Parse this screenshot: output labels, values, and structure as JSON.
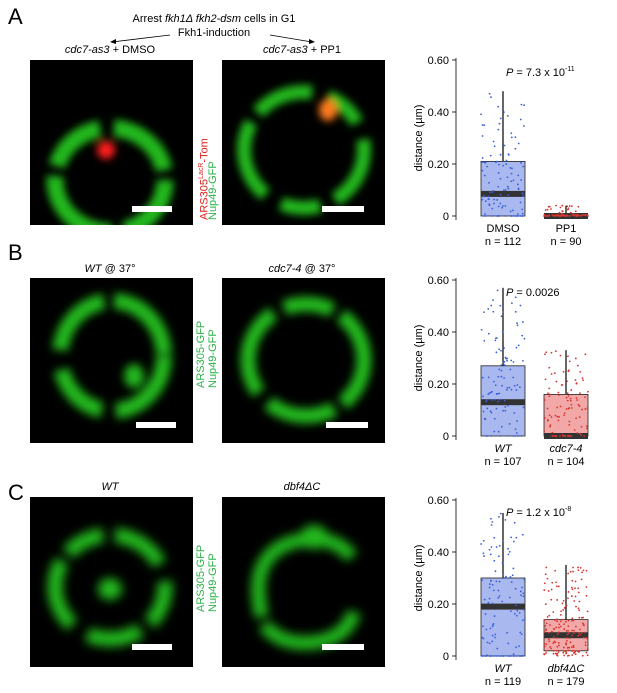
{
  "header": {
    "line1_pre": "Arrest ",
    "line1_genes": "fkh1Δ fkh2-dsm",
    "line1_post": " cells in G1",
    "line2": "Fkh1-induction"
  },
  "panels": [
    {
      "letter": "A",
      "left_cond": {
        "italic": "cdc7-as3",
        "plain": " + DMSO"
      },
      "right_cond": {
        "italic": "cdc7-as3",
        "plain": " + PP1"
      },
      "channel_labels": [
        {
          "text": "ARS305",
          "sup": "LacR",
          "text2": "-Tom",
          "color": "#e0201b"
        },
        {
          "text": "Nup49-GFP",
          "color": "#2bb24a"
        }
      ]
    },
    {
      "letter": "B",
      "left_cond": {
        "italic": "WT",
        "plain": " @ 37°"
      },
      "right_cond": {
        "italic": "cdc7-4",
        "plain": " @ 37°"
      },
      "channel_labels": [
        {
          "text": "ARS305-GFP",
          "color": "#2bb24a"
        },
        {
          "text": "Nup49-GFP",
          "color": "#2bb24a"
        }
      ]
    },
    {
      "letter": "C",
      "left_cond": {
        "italic": "WT",
        "plain": ""
      },
      "right_cond": {
        "italic": "dbf4ΔC",
        "plain": ""
      },
      "channel_labels": [
        {
          "text": "ARS305-GFP",
          "color": "#2bb24a"
        },
        {
          "text": "Nup49-GFP",
          "color": "#2bb24a"
        }
      ]
    }
  ],
  "colors": {
    "blue_box": "#a9b9ef",
    "blue_point": "#3a5fd6",
    "red_box": "#f3a8a8",
    "red_point": "#d8342f",
    "green": "#22c21e",
    "red_spot": "#ff1a1a",
    "orange_spot": "#ff7a1a"
  },
  "chart_data": [
    {
      "type": "box",
      "ylabel": "distance (µm)",
      "ylim": [
        0,
        0.6
      ],
      "yticks": [
        "0",
        "0.20",
        "0.40",
        "0.60"
      ],
      "pvalue": {
        "prefix": "P",
        "text": " = 7.3 x 10",
        "exp": "-11"
      },
      "groups": [
        {
          "name": "DMSO",
          "italic": false,
          "n": "n = 112",
          "min": 0,
          "q1": 0,
          "median": 0.085,
          "q3": 0.21,
          "max": 0.48,
          "color": "blue"
        },
        {
          "name": "PP1",
          "italic": false,
          "n": "n = 90",
          "min": 0,
          "q1": 0,
          "median": 0,
          "q3": 0.005,
          "max": 0.04,
          "color": "red"
        }
      ]
    },
    {
      "type": "box",
      "ylabel": "distance (µm)",
      "ylim": [
        0,
        0.6
      ],
      "yticks": [
        "0",
        "0.20",
        "0.40",
        "0.60"
      ],
      "pvalue": {
        "prefix": "P",
        "text": " = 0.0026",
        "exp": ""
      },
      "groups": [
        {
          "name": "WT",
          "italic": true,
          "n": "n = 107",
          "min": 0,
          "q1": 0,
          "median": 0.13,
          "q3": 0.27,
          "max": 0.57,
          "color": "blue"
        },
        {
          "name": "cdc7-4",
          "italic": true,
          "n": "n = 104",
          "min": 0,
          "q1": 0,
          "median": 0,
          "q3": 0.16,
          "max": 0.33,
          "color": "red"
        }
      ]
    },
    {
      "type": "box",
      "ylabel": "distance (µm)",
      "ylim": [
        0,
        0.6
      ],
      "yticks": [
        "0",
        "0.20",
        "0.40",
        "0.60"
      ],
      "pvalue": {
        "prefix": "P",
        "text": " = 1.2 x 10",
        "exp": "-8"
      },
      "groups": [
        {
          "name": "WT",
          "italic": true,
          "n": "n = 119",
          "min": 0,
          "q1": 0,
          "median": 0.19,
          "q3": 0.3,
          "max": 0.55,
          "color": "blue"
        },
        {
          "name": "dbf4ΔC",
          "italic": true,
          "n": "n = 179",
          "min": 0,
          "q1": 0.02,
          "median": 0.08,
          "q3": 0.14,
          "max": 0.35,
          "color": "red"
        }
      ]
    }
  ]
}
